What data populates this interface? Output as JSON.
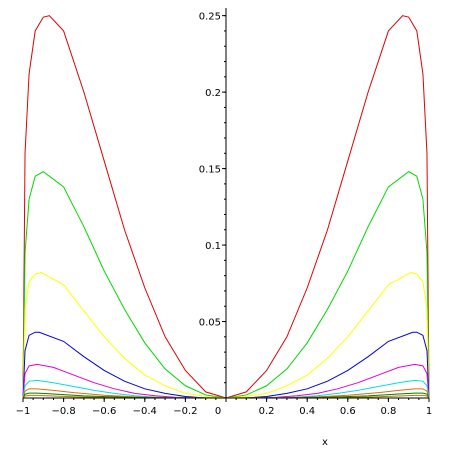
{
  "chart_data": {
    "type": "line",
    "xlabel": "x",
    "xlim": [
      -1,
      1
    ],
    "ylim": [
      0,
      0.255
    ],
    "x_ticks": [
      -1,
      -0.8,
      -0.6,
      -0.4,
      -0.2,
      0,
      0.2,
      0.4,
      0.6,
      0.8,
      1
    ],
    "x_tick_labels": [
      "−1",
      "−0.8",
      "−0.6",
      "−0.4",
      "−0.2",
      "0",
      "0.2",
      "0.4",
      "0.6",
      "0.8",
      "1"
    ],
    "y_ticks": [
      0.05,
      0.1,
      0.15,
      0.2,
      0.25
    ],
    "y_tick_labels": [
      "0.05",
      "0.1",
      "0.15",
      "0.2",
      "0.25"
    ],
    "grid": false,
    "series": [
      {
        "color": "#e00000",
        "x": [
          -1,
          -0.99,
          -0.97,
          -0.94,
          -0.9,
          -0.87,
          -0.8,
          -0.7,
          -0.6,
          -0.5,
          -0.4,
          -0.3,
          -0.2,
          -0.1,
          0,
          0.1,
          0.2,
          0.3,
          0.4,
          0.5,
          0.6,
          0.7,
          0.8,
          0.87,
          0.9,
          0.94,
          0.97,
          0.99,
          1
        ],
        "y": [
          0,
          0.16,
          0.212,
          0.24,
          0.249,
          0.25,
          0.24,
          0.2,
          0.155,
          0.11,
          0.072,
          0.04,
          0.018,
          0.004,
          0,
          0.004,
          0.018,
          0.04,
          0.072,
          0.11,
          0.155,
          0.2,
          0.24,
          0.25,
          0.249,
          0.24,
          0.212,
          0.16,
          0
        ]
      },
      {
        "color": "#00d800",
        "x": [
          -1,
          -0.99,
          -0.97,
          -0.94,
          -0.9,
          -0.8,
          -0.7,
          -0.6,
          -0.5,
          -0.4,
          -0.3,
          -0.2,
          -0.1,
          0,
          0.1,
          0.2,
          0.3,
          0.4,
          0.5,
          0.6,
          0.7,
          0.8,
          0.9,
          0.94,
          0.97,
          0.99,
          1
        ],
        "y": [
          0,
          0.095,
          0.13,
          0.145,
          0.148,
          0.138,
          0.112,
          0.083,
          0.058,
          0.036,
          0.019,
          0.008,
          0.002,
          0,
          0.002,
          0.008,
          0.019,
          0.036,
          0.058,
          0.083,
          0.112,
          0.138,
          0.148,
          0.145,
          0.13,
          0.095,
          0
        ]
      },
      {
        "color": "#ffff00",
        "x": [
          -1,
          -0.99,
          -0.97,
          -0.94,
          -0.91,
          -0.8,
          -0.7,
          -0.6,
          -0.5,
          -0.4,
          -0.3,
          -0.2,
          -0.1,
          0,
          0.1,
          0.2,
          0.3,
          0.4,
          0.5,
          0.6,
          0.7,
          0.8,
          0.91,
          0.94,
          0.97,
          0.99,
          1
        ],
        "y": [
          0,
          0.058,
          0.076,
          0.081,
          0.082,
          0.074,
          0.057,
          0.04,
          0.026,
          0.015,
          0.008,
          0.003,
          0.001,
          0,
          0.001,
          0.003,
          0.008,
          0.015,
          0.026,
          0.04,
          0.057,
          0.074,
          0.082,
          0.081,
          0.076,
          0.058,
          0
        ]
      },
      {
        "color": "#0000e0",
        "x": [
          -1,
          -0.99,
          -0.97,
          -0.94,
          -0.92,
          -0.8,
          -0.7,
          -0.6,
          -0.5,
          -0.4,
          -0.3,
          -0.2,
          -0.1,
          0,
          0.1,
          0.2,
          0.3,
          0.4,
          0.5,
          0.6,
          0.7,
          0.8,
          0.92,
          0.94,
          0.97,
          0.99,
          1
        ],
        "y": [
          0,
          0.031,
          0.041,
          0.043,
          0.043,
          0.037,
          0.027,
          0.018,
          0.011,
          0.006,
          0.003,
          0.001,
          0,
          0,
          0,
          0.001,
          0.003,
          0.006,
          0.011,
          0.018,
          0.027,
          0.037,
          0.043,
          0.043,
          0.041,
          0.031,
          0
        ]
      },
      {
        "color": "#e000e0",
        "x": [
          -1,
          -0.99,
          -0.97,
          -0.93,
          -0.85,
          -0.75,
          -0.65,
          -0.55,
          -0.45,
          -0.35,
          -0.25,
          -0.1,
          0,
          0.1,
          0.25,
          0.35,
          0.45,
          0.55,
          0.65,
          0.75,
          0.85,
          0.93,
          0.97,
          0.99,
          1
        ],
        "y": [
          0,
          0.016,
          0.021,
          0.022,
          0.02,
          0.015,
          0.01,
          0.006,
          0.003,
          0.0015,
          0.0005,
          0,
          0,
          0,
          0.0005,
          0.0015,
          0.003,
          0.006,
          0.01,
          0.015,
          0.02,
          0.022,
          0.021,
          0.016,
          0
        ]
      },
      {
        "color": "#00e0e0",
        "x": [
          -1,
          -0.99,
          -0.97,
          -0.93,
          -0.85,
          -0.75,
          -0.65,
          -0.55,
          -0.45,
          -0.35,
          -0.2,
          0,
          0.2,
          0.35,
          0.45,
          0.55,
          0.65,
          0.75,
          0.85,
          0.93,
          0.97,
          0.99,
          1
        ],
        "y": [
          0,
          0.008,
          0.011,
          0.0115,
          0.01,
          0.0075,
          0.005,
          0.003,
          0.0015,
          0.0006,
          0.0001,
          0,
          0.0001,
          0.0006,
          0.0015,
          0.003,
          0.005,
          0.0075,
          0.01,
          0.0115,
          0.011,
          0.008,
          0
        ]
      },
      {
        "color": "#e07000",
        "x": [
          -1,
          -0.99,
          -0.97,
          -0.93,
          -0.85,
          -0.75,
          -0.6,
          -0.45,
          -0.3,
          0,
          0.3,
          0.45,
          0.6,
          0.75,
          0.85,
          0.93,
          0.97,
          0.99,
          1
        ],
        "y": [
          0,
          0.0045,
          0.006,
          0.006,
          0.005,
          0.0035,
          0.0018,
          0.0007,
          0.0002,
          0,
          0.0002,
          0.0007,
          0.0018,
          0.0035,
          0.005,
          0.006,
          0.006,
          0.0045,
          0
        ]
      },
      {
        "color": "#008000",
        "x": [
          -1,
          -0.99,
          -0.97,
          -0.93,
          -0.85,
          -0.7,
          -0.5,
          -0.3,
          0,
          0.3,
          0.5,
          0.7,
          0.85,
          0.93,
          0.97,
          0.99,
          1
        ],
        "y": [
          0,
          0.0025,
          0.0032,
          0.0032,
          0.0026,
          0.0014,
          0.0005,
          0.0001,
          0,
          0.0001,
          0.0005,
          0.0014,
          0.0026,
          0.0032,
          0.0032,
          0.0025,
          0
        ]
      },
      {
        "color": "#b08000",
        "x": [
          -1,
          -0.99,
          -0.97,
          -0.93,
          -0.85,
          -0.7,
          -0.5,
          0,
          0.5,
          0.7,
          0.85,
          0.93,
          0.97,
          0.99,
          1
        ],
        "y": [
          0,
          0.0013,
          0.0017,
          0.0017,
          0.0013,
          0.0006,
          0.0002,
          0,
          0.0002,
          0.0006,
          0.0013,
          0.0017,
          0.0017,
          0.0013,
          0
        ]
      }
    ]
  }
}
